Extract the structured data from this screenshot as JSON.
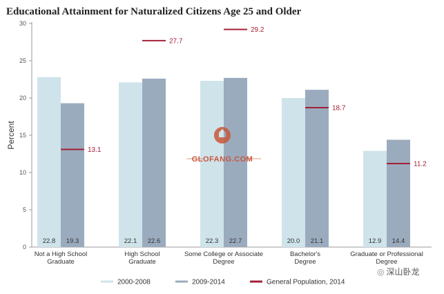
{
  "title": "Educational Attainment for Naturalized Citizens Age 25 and Older",
  "watermark": {
    "text": "GLOFANG.COM"
  },
  "badge": {
    "text": "深山卧龙"
  },
  "colors": {
    "series_2000": "#cfe3ea",
    "series_2009": "#9babbe",
    "general": "#a32035",
    "axis": "#999999",
    "watermark": "#c8573a"
  },
  "chart_data": {
    "type": "bar",
    "ylabel": "Percent",
    "ylim": [
      0,
      30
    ],
    "yticks": [
      0,
      5,
      10,
      15,
      20,
      25,
      30
    ],
    "categories": [
      [
        "Not a High School",
        "Graduate"
      ],
      [
        "High School",
        "Graduate"
      ],
      [
        "Some College or Associate",
        "Degree"
      ],
      [
        "Bachelor's",
        "Degree"
      ],
      [
        "Graduate or Professional",
        "Degree"
      ]
    ],
    "series": [
      {
        "name": "2000-2008",
        "values": [
          22.8,
          22.1,
          22.3,
          20.0,
          12.9
        ]
      },
      {
        "name": "2009-2014",
        "values": [
          19.3,
          22.6,
          22.7,
          21.1,
          14.4
        ]
      }
    ],
    "reference": {
      "name": "General Population, 2014",
      "values": [
        13.1,
        27.7,
        29.2,
        18.7,
        11.2
      ]
    },
    "legend_position": "bottom"
  }
}
